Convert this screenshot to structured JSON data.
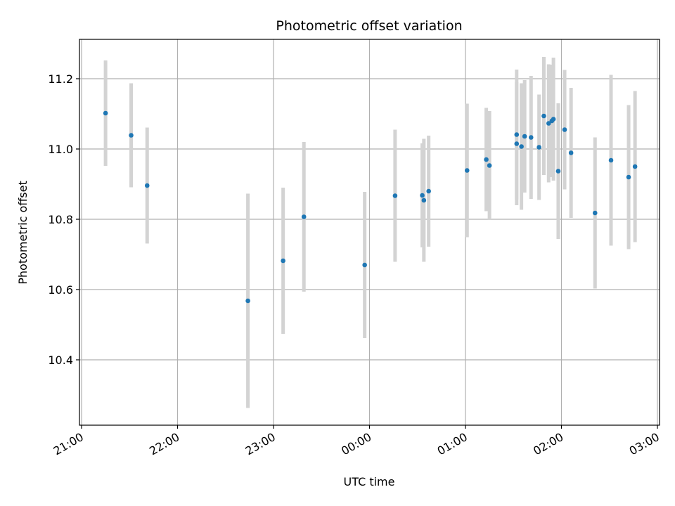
{
  "chart_data": {
    "type": "scatter",
    "title": "Photometric offset variation",
    "xlabel": "UTC time",
    "ylabel": "Photometric offset",
    "x_ticks": [
      "21:00",
      "22:00",
      "23:00",
      "00:00",
      "01:00",
      "02:00",
      "03:00"
    ],
    "y_ticks": [
      "10.4",
      "10.6",
      "10.8",
      "11.0",
      "11.2"
    ],
    "xlim": [
      "21:00",
      "03:00"
    ],
    "ylim": [
      10.21,
      11.32
    ],
    "grid": true,
    "colors": {
      "points": "#1f77b4",
      "errorbars": "#d3d3d3",
      "grid": "#b0b0b0"
    },
    "points": [
      {
        "time": "21:15",
        "y": 11.102,
        "err": 0.15
      },
      {
        "time": "21:31",
        "y": 11.039,
        "err": 0.148
      },
      {
        "time": "21:41",
        "y": 10.896,
        "err": 0.165
      },
      {
        "time": "22:44",
        "y": 10.568,
        "err": 0.305
      },
      {
        "time": "23:06",
        "y": 10.682,
        "err": 0.208
      },
      {
        "time": "23:19",
        "y": 10.807,
        "err": 0.213
      },
      {
        "time": "23:57",
        "y": 10.67,
        "err": 0.208
      },
      {
        "time": "00:16",
        "y": 10.867,
        "err": 0.188
      },
      {
        "time": "00:33",
        "y": 10.868,
        "err": 0.148
      },
      {
        "time": "00:34",
        "y": 10.854,
        "err": 0.175
      },
      {
        "time": "00:37",
        "y": 10.88,
        "err": 0.158
      },
      {
        "time": "01:01",
        "y": 10.939,
        "err": 0.19
      },
      {
        "time": "01:13",
        "y": 10.97,
        "err": 0.147
      },
      {
        "time": "01:15",
        "y": 10.953,
        "err": 0.155
      },
      {
        "time": "01:32",
        "y": 11.041,
        "err": 0.185
      },
      {
        "time": "01:32",
        "y": 11.015,
        "err": 0.175
      },
      {
        "time": "01:35",
        "y": 11.007,
        "err": 0.18
      },
      {
        "time": "01:37",
        "y": 11.036,
        "err": 0.16
      },
      {
        "time": "01:41",
        "y": 11.033,
        "err": 0.175
      },
      {
        "time": "01:46",
        "y": 11.005,
        "err": 0.15
      },
      {
        "time": "01:49",
        "y": 11.094,
        "err": 0.168
      },
      {
        "time": "01:52",
        "y": 11.073,
        "err": 0.168
      },
      {
        "time": "01:54",
        "y": 11.08,
        "err": 0.16
      },
      {
        "time": "01:55",
        "y": 11.085,
        "err": 0.175
      },
      {
        "time": "01:58",
        "y": 10.937,
        "err": 0.193
      },
      {
        "time": "02:02",
        "y": 11.055,
        "err": 0.17
      },
      {
        "time": "02:06",
        "y": 10.989,
        "err": 0.185
      },
      {
        "time": "02:21",
        "y": 10.818,
        "err": 0.215
      },
      {
        "time": "02:31",
        "y": 10.968,
        "err": 0.243
      },
      {
        "time": "02:42",
        "y": 10.92,
        "err": 0.205
      },
      {
        "time": "02:46",
        "y": 10.95,
        "err": 0.215
      }
    ]
  }
}
